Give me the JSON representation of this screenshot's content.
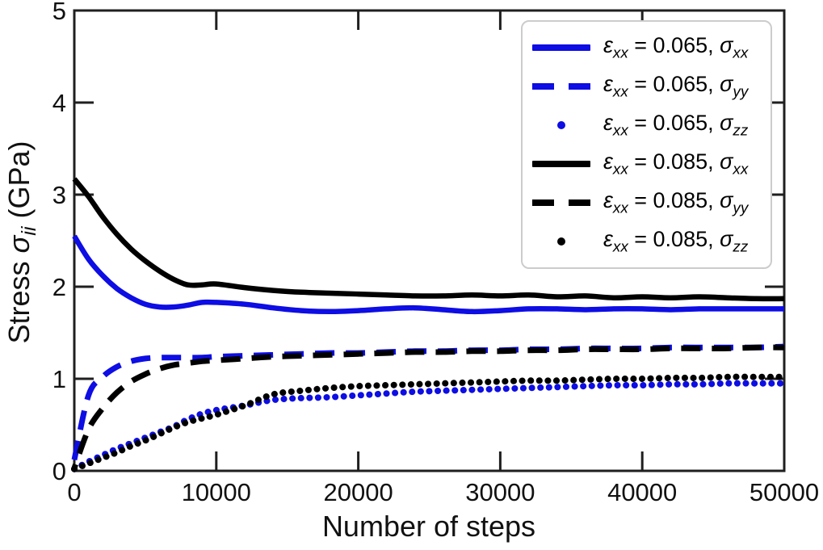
{
  "figure": {
    "xlabel": "Number of steps",
    "ylabel_prefix": "Stress ",
    "ylabel_symbol": "σ",
    "ylabel_sub": "ii",
    "ylabel_suffix": " (GPa)"
  },
  "chart_data": {
    "type": "line",
    "title": "",
    "xlabel": "Number of steps",
    "ylabel": "Stress σ_ii (GPa)",
    "xlim": [
      0,
      50000
    ],
    "ylim": [
      0,
      5
    ],
    "x_ticks": [
      0,
      10000,
      20000,
      30000,
      40000,
      50000
    ],
    "y_ticks": [
      0,
      1,
      2,
      3,
      4,
      5
    ],
    "grid": false,
    "legend_position": "upper right",
    "colors": {
      "blue": "#0d0de4",
      "black": "#000000"
    },
    "x": [
      0,
      1000,
      2000,
      3000,
      4000,
      5000,
      6000,
      7000,
      8000,
      9000,
      10000,
      12000,
      14000,
      16000,
      18000,
      20000,
      22000,
      24000,
      26000,
      28000,
      30000,
      32000,
      34000,
      36000,
      38000,
      40000,
      42000,
      44000,
      46000,
      48000,
      50000
    ],
    "series": [
      {
        "name": "ε_xx = 0.065, σ_xx",
        "color": "blue",
        "line": "solid",
        "values": [
          2.55,
          2.3,
          2.12,
          1.98,
          1.88,
          1.81,
          1.78,
          1.78,
          1.8,
          1.83,
          1.83,
          1.81,
          1.77,
          1.74,
          1.73,
          1.74,
          1.76,
          1.77,
          1.75,
          1.73,
          1.74,
          1.76,
          1.76,
          1.75,
          1.76,
          1.76,
          1.75,
          1.76,
          1.76,
          1.76,
          1.76
        ]
      },
      {
        "name": "ε_xx = 0.065, σ_yy",
        "color": "blue",
        "line": "dashed",
        "values": [
          0.12,
          0.82,
          1.02,
          1.13,
          1.19,
          1.22,
          1.23,
          1.23,
          1.23,
          1.23,
          1.24,
          1.25,
          1.26,
          1.27,
          1.28,
          1.28,
          1.29,
          1.3,
          1.3,
          1.31,
          1.31,
          1.32,
          1.32,
          1.33,
          1.33,
          1.33,
          1.34,
          1.34,
          1.34,
          1.34,
          1.35
        ]
      },
      {
        "name": "ε_xx = 0.065, σ_zz",
        "color": "blue",
        "line": "dotted",
        "values": [
          0.02,
          0.1,
          0.17,
          0.24,
          0.3,
          0.36,
          0.42,
          0.48,
          0.56,
          0.62,
          0.66,
          0.71,
          0.77,
          0.79,
          0.8,
          0.82,
          0.84,
          0.86,
          0.87,
          0.88,
          0.89,
          0.9,
          0.91,
          0.92,
          0.93,
          0.93,
          0.94,
          0.94,
          0.95,
          0.95,
          0.95
        ]
      },
      {
        "name": "ε_xx = 0.085, σ_xx",
        "color": "black",
        "line": "solid",
        "values": [
          3.17,
          2.98,
          2.76,
          2.57,
          2.41,
          2.28,
          2.17,
          2.08,
          2.02,
          2.02,
          2.03,
          1.99,
          1.96,
          1.94,
          1.93,
          1.92,
          1.91,
          1.9,
          1.9,
          1.91,
          1.9,
          1.91,
          1.89,
          1.9,
          1.88,
          1.89,
          1.88,
          1.89,
          1.88,
          1.87,
          1.87
        ]
      },
      {
        "name": "ε_xx = 0.085, σ_yy",
        "color": "black",
        "line": "dashed",
        "values": [
          0.03,
          0.45,
          0.68,
          0.85,
          0.97,
          1.05,
          1.11,
          1.15,
          1.17,
          1.19,
          1.2,
          1.22,
          1.24,
          1.25,
          1.26,
          1.27,
          1.28,
          1.29,
          1.29,
          1.3,
          1.3,
          1.31,
          1.31,
          1.32,
          1.32,
          1.32,
          1.33,
          1.33,
          1.33,
          1.34,
          1.34
        ]
      },
      {
        "name": "ε_xx = 0.085, σ_zz",
        "color": "black",
        "line": "dotted",
        "values": [
          0.02,
          0.08,
          0.14,
          0.2,
          0.27,
          0.33,
          0.4,
          0.47,
          0.53,
          0.57,
          0.61,
          0.71,
          0.83,
          0.87,
          0.9,
          0.92,
          0.93,
          0.94,
          0.95,
          0.96,
          0.97,
          0.98,
          0.98,
          0.99,
          1.0,
          1.0,
          1.01,
          1.01,
          1.02,
          1.02,
          1.02
        ]
      }
    ],
    "legend": [
      {
        "sym1": "ε",
        "sub1": "xx",
        "mid": " = 0.065, ",
        "sym2": "σ",
        "sub2": "xx",
        "color": "blue",
        "line": "solid"
      },
      {
        "sym1": "ε",
        "sub1": "xx",
        "mid": " = 0.065, ",
        "sym2": "σ",
        "sub2": "yy",
        "color": "blue",
        "line": "dashed"
      },
      {
        "sym1": "ε",
        "sub1": "xx",
        "mid": " = 0.065, ",
        "sym2": "σ",
        "sub2": "zz",
        "color": "blue",
        "line": "dotted"
      },
      {
        "sym1": "ε",
        "sub1": "xx",
        "mid": " = 0.085, ",
        "sym2": "σ",
        "sub2": "xx",
        "color": "black",
        "line": "solid"
      },
      {
        "sym1": "ε",
        "sub1": "xx",
        "mid": " = 0.085, ",
        "sym2": "σ",
        "sub2": "yy",
        "color": "black",
        "line": "dashed"
      },
      {
        "sym1": "ε",
        "sub1": "xx",
        "mid": " = 0.085, ",
        "sym2": "σ",
        "sub2": "zz",
        "color": "black",
        "line": "dotted"
      }
    ]
  }
}
